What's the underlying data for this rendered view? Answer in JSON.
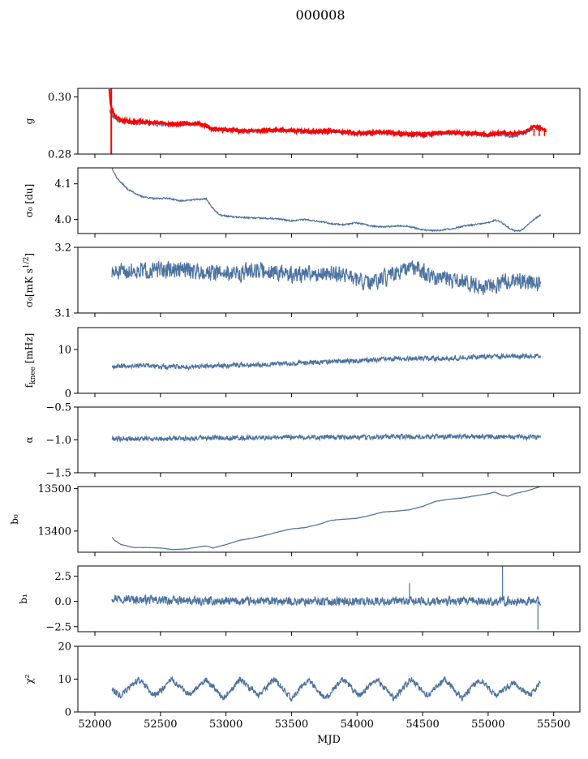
{
  "figure": {
    "title": "000008"
  },
  "chart_data": [
    {
      "type": "line",
      "ylabel": "g",
      "ylim": [
        0.28,
        0.303
      ],
      "yticks": [
        "0.28",
        "0.30"
      ],
      "ytick_values": [
        0.28,
        0.3
      ],
      "series": [
        {
          "color": "#4c72a0",
          "noise": 0.0006,
          "seed": 11,
          "x": [
            52110,
            52120,
            52150,
            52200,
            52300,
            52400,
            52500,
            52600,
            52700,
            52800,
            52850,
            52900,
            53000,
            53100,
            53200,
            53300,
            53400,
            53500,
            53600,
            53700,
            53800,
            53900,
            54000,
            54100,
            54200,
            54300,
            54400,
            54500,
            54600,
            54700,
            54800,
            54900,
            55000,
            55100,
            55200,
            55300,
            55350,
            55400
          ],
          "y": [
            0.2958,
            0.2945,
            0.2925,
            0.2915,
            0.291,
            0.2908,
            0.2904,
            0.2902,
            0.2906,
            0.2905,
            0.2895,
            0.2887,
            0.2884,
            0.2882,
            0.288,
            0.2882,
            0.2884,
            0.288,
            0.2878,
            0.2876,
            0.2878,
            0.2874,
            0.287,
            0.2872,
            0.2874,
            0.287,
            0.2866,
            0.2866,
            0.287,
            0.2874,
            0.2872,
            0.2868,
            0.2866,
            0.287,
            0.2862,
            0.2878,
            0.2898,
            0.2882
          ]
        },
        {
          "color": "#ff0000",
          "noise": 0.0005,
          "seed": 23,
          "x": [
            52110,
            52120,
            52150,
            52200,
            52300,
            52400,
            52500,
            52600,
            52700,
            52800,
            52850,
            52900,
            53000,
            53100,
            53200,
            53300,
            53400,
            53500,
            53600,
            53700,
            53800,
            53900,
            54000,
            54100,
            54200,
            54300,
            54400,
            54500,
            54600,
            54700,
            54800,
            54900,
            55000,
            55100,
            55200,
            55300,
            55350,
            55400,
            55440
          ],
          "y": [
            0.303,
            0.297,
            0.2935,
            0.2918,
            0.2914,
            0.2912,
            0.2908,
            0.2905,
            0.2908,
            0.2908,
            0.2898,
            0.2888,
            0.2885,
            0.2883,
            0.2881,
            0.2883,
            0.2886,
            0.2882,
            0.288,
            0.2879,
            0.2881,
            0.2877,
            0.2874,
            0.2875,
            0.2877,
            0.2873,
            0.2871,
            0.287,
            0.2873,
            0.2876,
            0.2874,
            0.2872,
            0.2868,
            0.2876,
            0.287,
            0.288,
            0.29,
            0.2892,
            0.288
          ]
        }
      ]
    },
    {
      "type": "line",
      "ylabel": "σ₀ [du]",
      "ylim": [
        3.96,
        4.145
      ],
      "yticks": [
        "4.0",
        "4.1"
      ],
      "ytick_values": [
        4.0,
        4.1
      ],
      "series": [
        {
          "color": "#4c72a0",
          "noise": 0.002,
          "seed": 37,
          "x": [
            52130,
            52170,
            52250,
            52350,
            52450,
            52550,
            52650,
            52750,
            52850,
            52880,
            52950,
            53050,
            53200,
            53400,
            53500,
            53600,
            53700,
            53800,
            53900,
            54000,
            54100,
            54200,
            54300,
            54400,
            54500,
            54600,
            54700,
            54800,
            54900,
            55000,
            55050,
            55100,
            55150,
            55200,
            55250,
            55300,
            55350,
            55400
          ],
          "y": [
            4.145,
            4.115,
            4.085,
            4.065,
            4.058,
            4.06,
            4.052,
            4.055,
            4.058,
            4.04,
            4.012,
            4.007,
            4.004,
            4.001,
            3.996,
            4.0,
            3.995,
            3.988,
            3.985,
            3.99,
            3.982,
            3.978,
            3.982,
            3.98,
            3.97,
            3.968,
            3.972,
            3.98,
            3.985,
            3.99,
            3.998,
            3.992,
            3.978,
            3.968,
            3.968,
            3.985,
            4.0,
            4.012
          ]
        }
      ]
    },
    {
      "type": "line",
      "ylabel": "σ₀[mK s^1/2]",
      "ylim": [
        3.1,
        3.2
      ],
      "yticks": [
        "3.1",
        "3.2"
      ],
      "ytick_values": [
        3.1,
        3.2
      ],
      "series": [
        {
          "color": "#4c72a0",
          "noise": 0.012,
          "seed": 51,
          "x": [
            52130,
            52300,
            52500,
            52700,
            52900,
            53100,
            53200,
            53300,
            53500,
            53700,
            53900,
            54000,
            54100,
            54300,
            54450,
            54600,
            54800,
            55000,
            55200,
            55400
          ],
          "y": [
            3.16,
            3.165,
            3.165,
            3.166,
            3.162,
            3.16,
            3.166,
            3.164,
            3.158,
            3.16,
            3.16,
            3.15,
            3.144,
            3.16,
            3.17,
            3.152,
            3.148,
            3.14,
            3.15,
            3.145
          ]
        }
      ]
    },
    {
      "type": "line",
      "ylabel": "f_knee [mHz]",
      "ylim": [
        0,
        15
      ],
      "yticks": [
        "0",
        "10"
      ],
      "ytick_values": [
        0,
        10
      ],
      "series": [
        {
          "color": "#4c72a0",
          "noise": 0.5,
          "seed": 67,
          "x": [
            52130,
            52300,
            52500,
            52700,
            52900,
            53100,
            53300,
            53500,
            53700,
            53900,
            54100,
            54300,
            54500,
            54700,
            54900,
            55100,
            55300,
            55400
          ],
          "y": [
            6.2,
            6.4,
            6.1,
            6.0,
            6.2,
            6.5,
            6.6,
            6.9,
            7.1,
            7.3,
            7.6,
            7.8,
            7.9,
            8.0,
            8.3,
            8.5,
            8.5,
            8.6
          ]
        }
      ]
    },
    {
      "type": "line",
      "ylabel": "α",
      "ylim": [
        -1.5,
        -0.5
      ],
      "yticks": [
        "−1.5",
        "−1.0",
        "−0.5"
      ],
      "ytick_values": [
        -1.5,
        -1.0,
        -0.5
      ],
      "series": [
        {
          "color": "#4c72a0",
          "noise": 0.035,
          "seed": 79,
          "x": [
            52130,
            52500,
            53000,
            53500,
            54000,
            54500,
            55000,
            55400
          ],
          "y": [
            -0.98,
            -0.98,
            -0.97,
            -0.96,
            -0.96,
            -0.95,
            -0.95,
            -0.96
          ]
        }
      ]
    },
    {
      "type": "line",
      "ylabel": "b₀",
      "ylim": [
        13350,
        13505
      ],
      "yticks": [
        "13400",
        "13500"
      ],
      "ytick_values": [
        13400,
        13500
      ],
      "series": [
        {
          "color": "#4c72a0",
          "noise": 0.4,
          "seed": 83,
          "x": [
            52130,
            52150,
            52200,
            52300,
            52400,
            52500,
            52600,
            52700,
            52800,
            52850,
            52900,
            53000,
            53100,
            53200,
            53300,
            53400,
            53500,
            53600,
            53700,
            53800,
            53900,
            54000,
            54100,
            54200,
            54300,
            54400,
            54500,
            54600,
            54700,
            54800,
            54900,
            55000,
            55050,
            55100,
            55150,
            55200,
            55300,
            55400
          ],
          "y": [
            13385,
            13378,
            13368,
            13361,
            13361,
            13360,
            13356,
            13358,
            13363,
            13365,
            13360,
            13368,
            13378,
            13383,
            13390,
            13398,
            13405,
            13408,
            13415,
            13425,
            13428,
            13430,
            13437,
            13445,
            13447,
            13450,
            13458,
            13470,
            13475,
            13478,
            13483,
            13488,
            13492,
            13485,
            13482,
            13488,
            13495,
            13505
          ]
        }
      ]
    },
    {
      "type": "line",
      "ylabel": "b₁",
      "ylim": [
        -3,
        3.5
      ],
      "yticks": [
        "−2.5",
        "0.0",
        "2.5"
      ],
      "ytick_values": [
        -2.5,
        0,
        2.5
      ],
      "series": [
        {
          "color": "#4c72a0",
          "noise": 0.4,
          "seed": 97,
          "x": [
            52130,
            52300,
            52500,
            52800,
            53100,
            53500,
            54000,
            54500,
            55000,
            55400
          ],
          "y": [
            0.4,
            0.2,
            0.1,
            0.0,
            0.0,
            0.0,
            0.0,
            0.0,
            0.0,
            0.0
          ]
        }
      ]
    },
    {
      "type": "line",
      "ylabel": "χ²",
      "ylim": [
        0,
        20
      ],
      "yticks": [
        "0",
        "10",
        "20"
      ],
      "ytick_values": [
        0,
        10,
        20
      ],
      "xlabel": "MJD",
      "xticks": [
        "52000",
        "52500",
        "53000",
        "53500",
        "54000",
        "54500",
        "55000",
        "55500"
      ],
      "xtick_values": [
        52000,
        52500,
        53000,
        53500,
        54000,
        54500,
        55000,
        55500
      ],
      "xlim": [
        51870,
        55700
      ],
      "series": [
        {
          "color": "#4c72a0",
          "noise": 0.9,
          "seed": 113,
          "x": [
            52130,
            52200,
            52330,
            52460,
            52590,
            52720,
            52850,
            52980,
            53110,
            53240,
            53370,
            53500,
            53630,
            53760,
            53890,
            54020,
            54150,
            54280,
            54410,
            54540,
            54670,
            54800,
            54930,
            55060,
            55190,
            55320,
            55400
          ],
          "y": [
            7,
            5,
            10,
            5,
            10,
            5,
            10,
            4,
            10,
            5,
            10,
            4,
            10,
            4,
            10,
            5,
            10,
            4,
            10,
            5,
            10,
            4,
            10,
            5,
            9,
            5,
            9
          ]
        }
      ]
    }
  ],
  "annotations": {
    "b1_spikes": [
      [
        54400,
        1.8
      ],
      [
        55110,
        3.5
      ],
      [
        55380,
        -2.8
      ]
    ]
  }
}
